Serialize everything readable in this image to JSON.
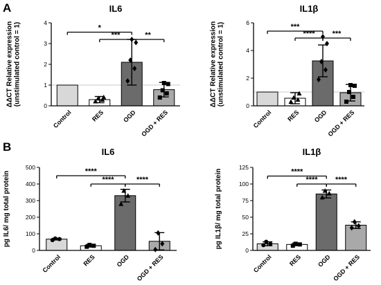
{
  "panels": [
    {
      "letter": "A"
    },
    {
      "letter": "B"
    }
  ],
  "chart_data": [
    {
      "type": "bar",
      "panel": "A",
      "title": "IL6",
      "ylabel_lines": [
        "ΔΔCT Relative expression",
        "(unstimulated control = 1)"
      ],
      "ylim": [
        0,
        4
      ],
      "yticks": [
        "0",
        "1",
        "2",
        "3",
        "4"
      ],
      "reference_line": 1,
      "categories": [
        "Control",
        "RES",
        "OGD",
        "OGD + RES"
      ],
      "values": [
        1.0,
        0.3,
        2.1,
        0.78
      ],
      "errors": [
        0,
        0.15,
        1.1,
        0.35
      ],
      "bar_colors": [
        "#d8d8d8",
        "#ffffff",
        "#6b6b6b",
        "#a9a9a9"
      ],
      "points": [
        [],
        [
          0.22,
          0.3,
          0.36,
          0.42
        ],
        [
          1.2,
          1.8,
          2.2,
          3.05,
          3.2
        ],
        [
          0.4,
          0.6,
          0.75,
          1.05,
          1.1
        ]
      ],
      "point_marker": [
        "",
        "triangle",
        "diamond",
        "square"
      ],
      "significance": [
        {
          "from": 0,
          "to": 2,
          "y": 3.55,
          "label": "*"
        },
        {
          "from": 1,
          "to": 2,
          "y": 3.2,
          "label": "***"
        },
        {
          "from": 2,
          "to": 3,
          "y": 3.2,
          "label": "**"
        }
      ]
    },
    {
      "type": "bar",
      "panel": "A",
      "title": "IL1β",
      "ylabel_lines": [
        "ΔΔCT Relative expression",
        "(unstimulated control = 1)"
      ],
      "ylim": [
        0,
        6
      ],
      "yticks": [
        "0",
        "2",
        "4",
        "6"
      ],
      "reference_line": 1,
      "categories": [
        "Control",
        "RES",
        "OGD",
        "OGD + RES"
      ],
      "values": [
        1.0,
        0.55,
        3.25,
        0.95
      ],
      "errors": [
        0,
        0.4,
        1.15,
        0.6
      ],
      "bar_colors": [
        "#d8d8d8",
        "#ffffff",
        "#6b6b6b",
        "#a9a9a9"
      ],
      "points": [
        [],
        [
          0.3,
          0.45,
          0.6,
          0.9
        ],
        [
          1.9,
          2.6,
          3.2,
          4.5,
          5.0
        ],
        [
          0.3,
          0.65,
          1.0,
          1.45,
          1.5
        ]
      ],
      "point_marker": [
        "",
        "triangle",
        "diamond",
        "square"
      ],
      "significance": [
        {
          "from": 0,
          "to": 2,
          "y": 5.4,
          "label": "***"
        },
        {
          "from": 1,
          "to": 2,
          "y": 4.9,
          "label": "****"
        },
        {
          "from": 2,
          "to": 3,
          "y": 4.9,
          "label": "***"
        }
      ]
    },
    {
      "type": "bar",
      "panel": "B",
      "title": "IL6",
      "ylabel_lines": [
        "pg IL6/ mg total protein"
      ],
      "ylim": [
        0,
        500
      ],
      "yticks": [
        "0",
        "100",
        "200",
        "300",
        "400",
        "500"
      ],
      "reference_line": null,
      "categories": [
        "Control",
        "RES",
        "OGD",
        "OGD + RES"
      ],
      "values": [
        68,
        28,
        330,
        55
      ],
      "errors": [
        5,
        8,
        38,
        52
      ],
      "bar_colors": [
        "#d8d8d8",
        "#ffffff",
        "#6b6b6b",
        "#a9a9a9"
      ],
      "points": [
        [
          62,
          68,
          72
        ],
        [
          22,
          28,
          33
        ],
        [
          280,
          330,
          360
        ],
        [
          5,
          40,
          105
        ]
      ],
      "point_marker": [
        "circle",
        "square",
        "triangle",
        "diamond"
      ],
      "significance": [
        {
          "from": 0,
          "to": 2,
          "y": 450,
          "label": "****"
        },
        {
          "from": 1,
          "to": 2,
          "y": 400,
          "label": "****"
        },
        {
          "from": 2,
          "to": 3,
          "y": 400,
          "label": "****"
        }
      ]
    },
    {
      "type": "bar",
      "panel": "B",
      "title": "IL1β",
      "ylabel_lines": [
        "pg IL1β/ mg total protein"
      ],
      "ylim": [
        0,
        125
      ],
      "yticks": [
        "0",
        "25",
        "50",
        "75",
        "100",
        "125"
      ],
      "reference_line": null,
      "categories": [
        "Control",
        "RES",
        "OGD",
        "OGD + RES"
      ],
      "values": [
        10,
        9,
        85,
        38
      ],
      "errors": [
        3,
        2,
        6,
        5
      ],
      "bar_colors": [
        "#d8d8d8",
        "#ffffff",
        "#6b6b6b",
        "#a9a9a9"
      ],
      "points": [
        [
          8,
          10,
          13
        ],
        [
          7,
          9,
          10
        ],
        [
          80,
          86,
          90
        ],
        [
          34,
          37,
          43
        ]
      ],
      "point_marker": [
        "circle",
        "square",
        "triangle",
        "diamond"
      ],
      "significance": [
        {
          "from": 0,
          "to": 2,
          "y": 112,
          "label": "****"
        },
        {
          "from": 1,
          "to": 2,
          "y": 100,
          "label": "****"
        },
        {
          "from": 2,
          "to": 3,
          "y": 100,
          "label": "****"
        }
      ]
    }
  ]
}
